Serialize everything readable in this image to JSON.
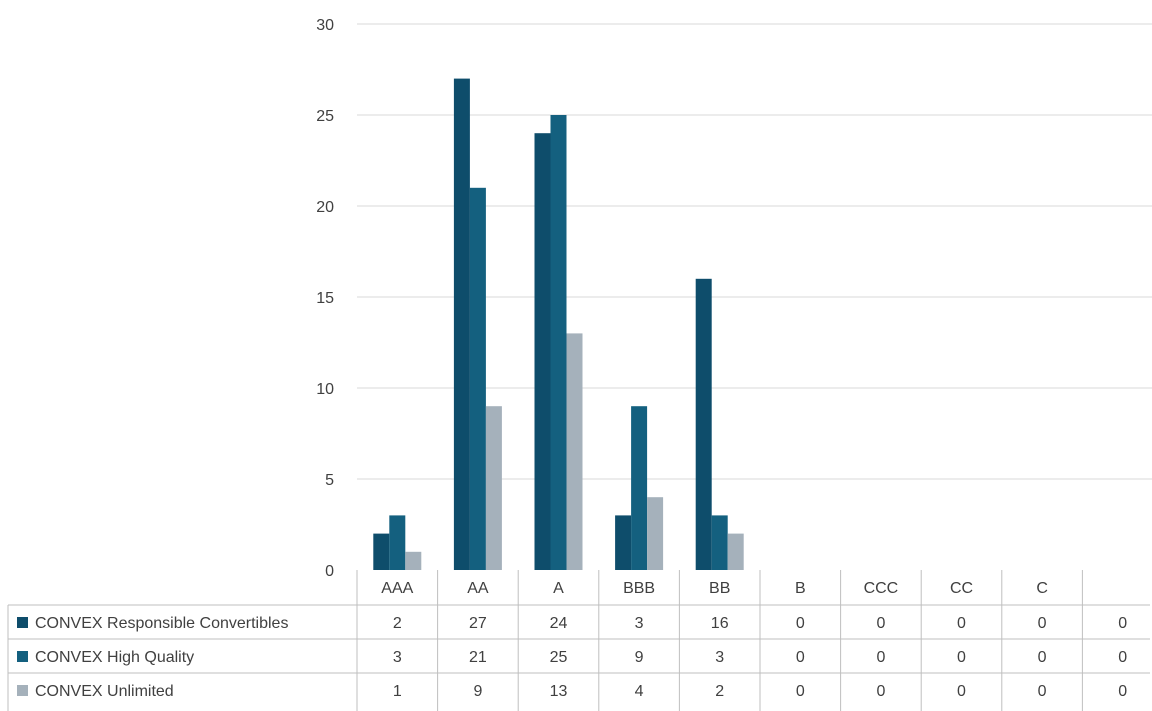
{
  "chart_data": {
    "type": "bar",
    "categories": [
      "AAA",
      "AA",
      "A",
      "BBB",
      "BB",
      "B",
      "CCC",
      "CC",
      "C",
      ""
    ],
    "series": [
      {
        "name": "CONVEX Responsible Convertibles",
        "values": [
          2,
          27,
          24,
          3,
          16,
          0,
          0,
          0,
          0,
          0
        ],
        "color": "#0e4d6b"
      },
      {
        "name": "CONVEX High Quality",
        "values": [
          3,
          21,
          25,
          9,
          3,
          0,
          0,
          0,
          0,
          0
        ],
        "color": "#14607f"
      },
      {
        "name": "CONVEX Unlimited",
        "values": [
          1,
          9,
          13,
          4,
          2,
          0,
          0,
          0,
          0,
          0
        ],
        "color": "#a5b1bb"
      }
    ],
    "ylim": [
      0,
      30
    ],
    "yticks": [
      0,
      5,
      10,
      15,
      20,
      25,
      30
    ],
    "grid": true,
    "legend": "data-table"
  }
}
